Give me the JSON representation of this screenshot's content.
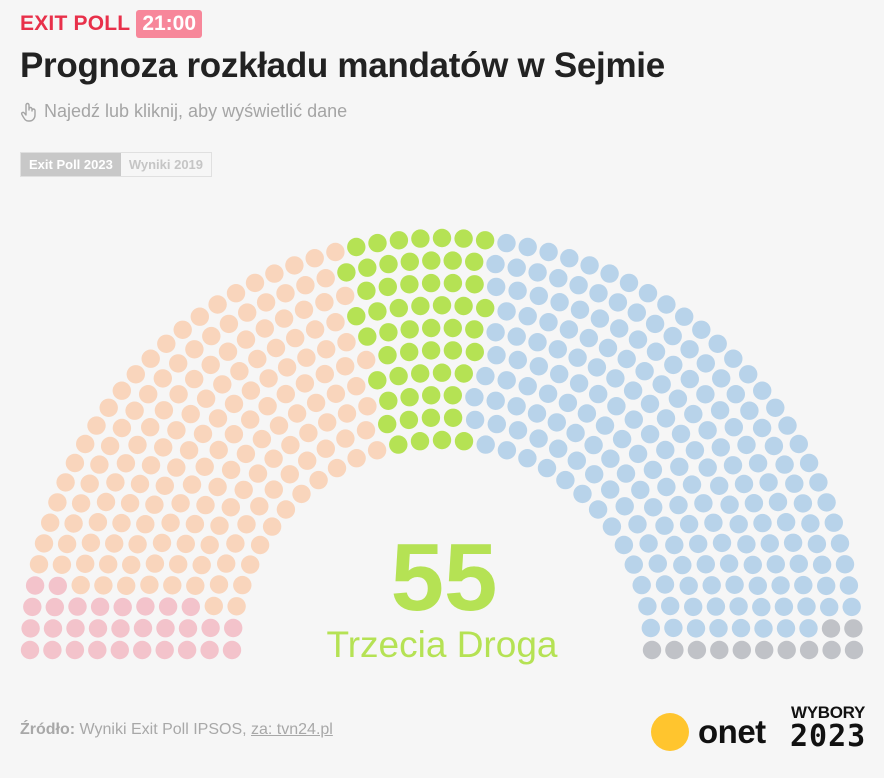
{
  "header": {
    "kicker": "EXIT POLL",
    "time": "21:00",
    "title": "Prognoza rozkładu mandatów w Sejmie",
    "hint": "Najedź lub kliknij, aby wyświetlić dane",
    "hint_icon": "hand-pointer-icon"
  },
  "tabs": [
    {
      "label": "Exit Poll 2023",
      "active": true
    },
    {
      "label": "Wyniki 2019",
      "active": false
    }
  ],
  "highlight": {
    "value": "55",
    "label": "Trzecia Droga",
    "color": "#b5e254"
  },
  "chart_data": {
    "type": "parliament",
    "title": "Prognoza rozkładu mandatów w Sejmie",
    "total_seats": 460,
    "series": [
      {
        "name": "",
        "value": 30,
        "color": "#f3c3cb"
      },
      {
        "name": "",
        "value": 163,
        "color": "#f9d5bc"
      },
      {
        "name": "Trzecia Droga",
        "value": 55,
        "color": "#b5e254"
      },
      {
        "name": "",
        "value": 200,
        "color": "#b8d3ea"
      },
      {
        "name": "",
        "value": 12,
        "color": "#c0c2c7"
      }
    ]
  },
  "footer": {
    "source_label": "Źródło:",
    "source_text": "Wyniki Exit Poll IPSOS,",
    "source_link": "za: tvn24.pl",
    "brand": "onet",
    "election_top": "WYBORY",
    "election_year": "2023"
  }
}
